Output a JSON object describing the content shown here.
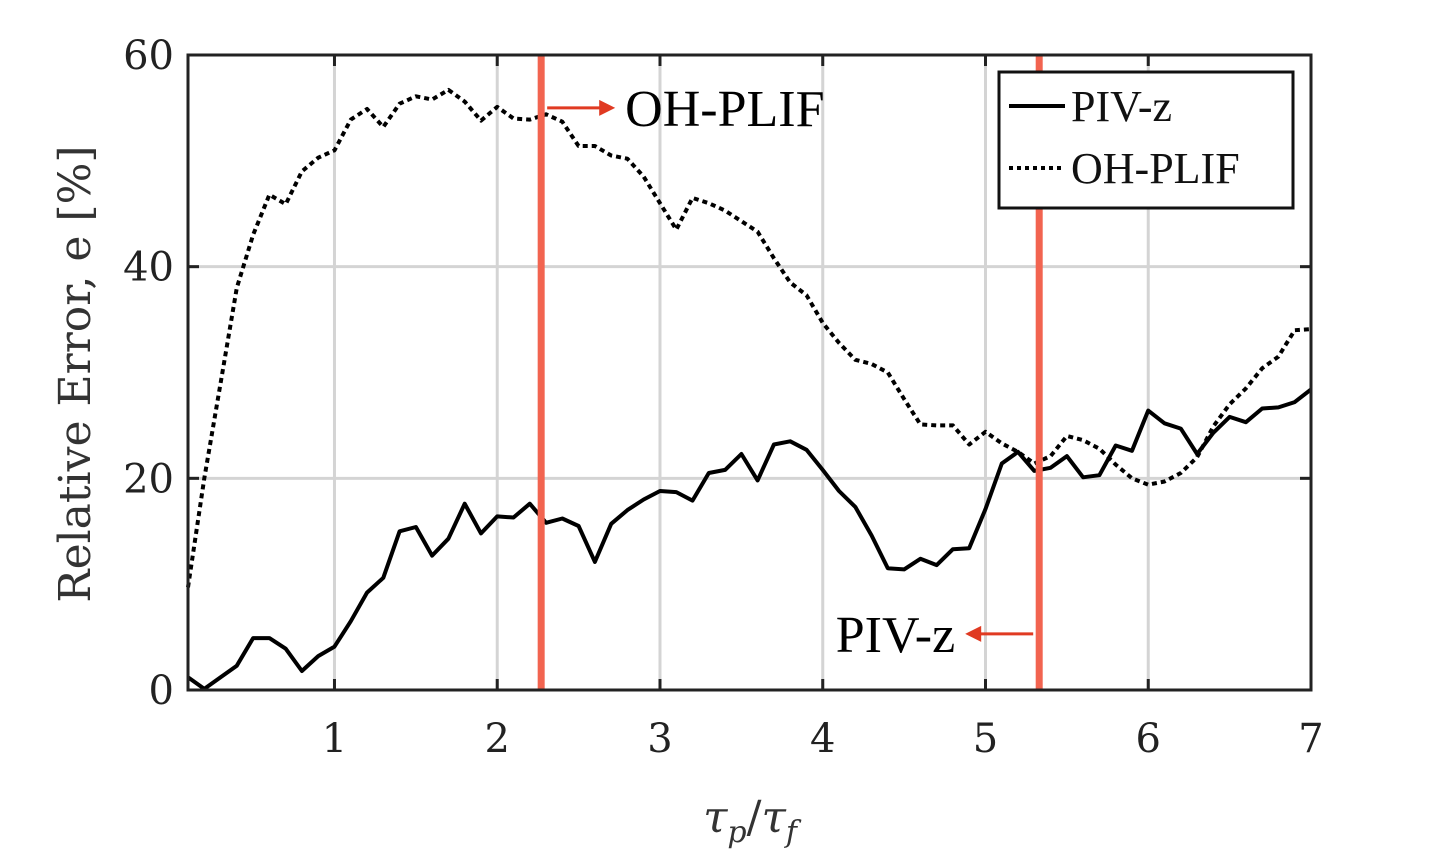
{
  "chart_data": {
    "type": "line",
    "title": "",
    "xlabel": "τp/τf",
    "xlabel_parts": {
      "main1": "τ",
      "sub1": "p",
      "slash": "/",
      "main2": "τ",
      "sub2": "f"
    },
    "ylabel": "Relative Error, e [%]",
    "xlim": [
      0.1,
      7
    ],
    "ylim": [
      0,
      60
    ],
    "xticks": [
      1,
      2,
      3,
      4,
      5,
      6,
      7
    ],
    "yticks": [
      0,
      20,
      40,
      60
    ],
    "grid": true,
    "legend_position": "top-right",
    "series": [
      {
        "name": "PIV-z",
        "style": "solid",
        "color": "#000000",
        "x": [
          0.1,
          0.2,
          0.3,
          0.4,
          0.5,
          0.6,
          0.7,
          0.8,
          0.9,
          1.0,
          1.1,
          1.2,
          1.3,
          1.4,
          1.5,
          1.6,
          1.7,
          1.8,
          1.9,
          2.0,
          2.1,
          2.2,
          2.3,
          2.4,
          2.5,
          2.6,
          2.7,
          2.8,
          2.9,
          3.0,
          3.1,
          3.2,
          3.3,
          3.4,
          3.5,
          3.6,
          3.7,
          3.8,
          3.9,
          4.0,
          4.1,
          4.2,
          4.3,
          4.4,
          4.5,
          4.6,
          4.7,
          4.8,
          4.9,
          5.0,
          5.1,
          5.2,
          5.3,
          5.4,
          5.5,
          5.6,
          5.7,
          5.8,
          5.9,
          6.0,
          6.1,
          6.2,
          6.3,
          6.4,
          6.5,
          6.6,
          6.7,
          6.8,
          6.9,
          7.0
        ],
        "values": [
          1.2,
          0.1,
          1.2,
          2.3,
          4.9,
          4.9,
          3.9,
          1.8,
          3.2,
          4.1,
          6.5,
          9.2,
          10.6,
          15.0,
          15.4,
          12.7,
          14.3,
          17.6,
          14.8,
          16.4,
          16.3,
          17.6,
          15.8,
          16.2,
          15.5,
          12.1,
          15.7,
          17.0,
          18.0,
          18.8,
          18.7,
          17.9,
          20.5,
          20.8,
          22.3,
          19.8,
          23.2,
          23.5,
          22.7,
          20.8,
          18.8,
          17.3,
          14.6,
          11.5,
          11.4,
          12.4,
          11.8,
          13.3,
          13.4,
          17.1,
          21.4,
          22.5,
          20.7,
          21.0,
          22.1,
          20.1,
          20.3,
          23.1,
          22.6,
          26.4,
          25.2,
          24.7,
          22.3,
          24.3,
          25.8,
          25.3,
          26.6,
          26.7,
          27.2,
          28.4
        ]
      },
      {
        "name": "OH-PLIF",
        "style": "dotted",
        "color": "#000000",
        "x": [
          0.1,
          0.2,
          0.3,
          0.4,
          0.5,
          0.6,
          0.7,
          0.8,
          0.9,
          1.0,
          1.1,
          1.2,
          1.3,
          1.4,
          1.5,
          1.6,
          1.7,
          1.8,
          1.9,
          2.0,
          2.1,
          2.2,
          2.3,
          2.4,
          2.5,
          2.6,
          2.7,
          2.8,
          2.9,
          3.0,
          3.1,
          3.2,
          3.3,
          3.4,
          3.5,
          3.6,
          3.7,
          3.8,
          3.9,
          4.0,
          4.1,
          4.2,
          4.3,
          4.4,
          4.5,
          4.6,
          4.7,
          4.8,
          4.9,
          5.0,
          5.1,
          5.2,
          5.3,
          5.4,
          5.5,
          5.6,
          5.7,
          5.8,
          5.9,
          6.0,
          6.1,
          6.2,
          6.3,
          6.4,
          6.5,
          6.6,
          6.7,
          6.8,
          6.9,
          7.0
        ],
        "values": [
          9.7,
          20.0,
          29.0,
          38.0,
          43.0,
          46.8,
          45.9,
          49.0,
          50.3,
          51.0,
          53.9,
          54.9,
          53.2,
          55.4,
          56.1,
          55.8,
          56.7,
          55.6,
          53.8,
          55.1,
          54.0,
          53.9,
          54.4,
          53.7,
          51.4,
          51.4,
          50.5,
          50.2,
          48.5,
          46.0,
          43.5,
          46.5,
          46.0,
          45.3,
          44.3,
          43.3,
          40.8,
          38.5,
          37.3,
          34.7,
          32.8,
          31.2,
          30.8,
          30.0,
          27.5,
          25.1,
          25.0,
          25.0,
          23.2,
          24.4,
          23.3,
          22.5,
          21.4,
          22.1,
          24.0,
          23.6,
          22.8,
          21.3,
          20.0,
          19.4,
          19.7,
          20.5,
          22.0,
          24.9,
          27.0,
          28.5,
          30.4,
          31.5,
          34.0,
          34.1
        ]
      }
    ],
    "markers": [
      {
        "x": 2.27,
        "label": "OH-PLIF",
        "arrow": "right",
        "label_y": 55,
        "color": "#f26450"
      },
      {
        "x": 5.33,
        "label": "PIV-z",
        "arrow": "left",
        "label_y": 5.3,
        "color": "#f26450"
      }
    ]
  }
}
